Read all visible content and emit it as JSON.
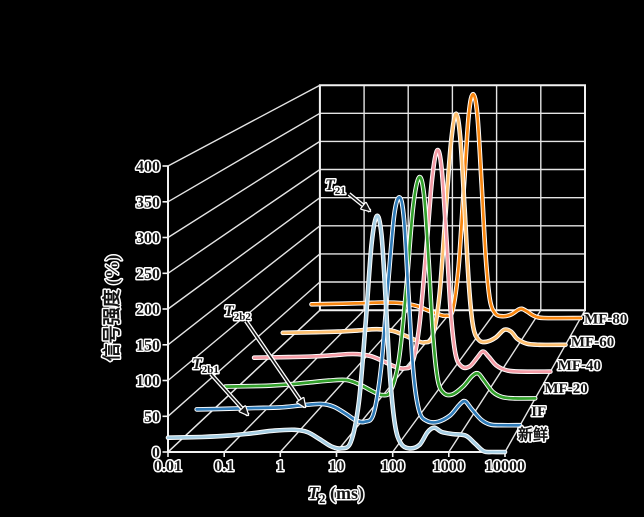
{
  "figure": {
    "background": "#000000",
    "grid_color": "#e4e4e4",
    "axis_color": "#f2f2f2",
    "halo_color": "#ffffff",
    "ink_color": "#141414"
  },
  "chart_data": {
    "type": "line",
    "projection": "3d-waterfall",
    "x_scale": "log",
    "xlim": [
      0.01,
      10000
    ],
    "ylim": [
      0,
      400
    ],
    "xlabel": {
      "main": "T",
      "sub": "2",
      "unit": " (ms)"
    },
    "ylabel": "信号强度 (%)",
    "x_ticks": [
      "0.01",
      "0.1",
      "1",
      "10",
      "100",
      "1000",
      "10000"
    ],
    "y_ticks": [
      0,
      50,
      100,
      150,
      200,
      250,
      300,
      350,
      400
    ],
    "grid": true,
    "legend_position": "right-of-each-baseline",
    "series": [
      {
        "name": "新鲜",
        "color": "#a6cee3",
        "data": [
          [
            0.01,
            20
          ],
          [
            0.04,
            21
          ],
          [
            0.12,
            23
          ],
          [
            0.3,
            26
          ],
          [
            0.8,
            30
          ],
          [
            1.8,
            31
          ],
          [
            3,
            28
          ],
          [
            5,
            18
          ],
          [
            8,
            8
          ],
          [
            12,
            5
          ],
          [
            18,
            14
          ],
          [
            25,
            70
          ],
          [
            33,
            180
          ],
          [
            42,
            290
          ],
          [
            52,
            330
          ],
          [
            63,
            305
          ],
          [
            75,
            215
          ],
          [
            90,
            105
          ],
          [
            110,
            38
          ],
          [
            140,
            12
          ],
          [
            200,
            5
          ],
          [
            300,
            10
          ],
          [
            420,
            28
          ],
          [
            550,
            34
          ],
          [
            750,
            28
          ],
          [
            1200,
            25
          ],
          [
            2000,
            23
          ],
          [
            2900,
            12
          ],
          [
            4200,
            1
          ],
          [
            6000,
            0
          ],
          [
            10000,
            0
          ]
        ]
      },
      {
        "name": "IF",
        "color": "#2f7bb8",
        "data": [
          [
            0.01,
            23
          ],
          [
            0.04,
            24
          ],
          [
            0.12,
            25
          ],
          [
            0.35,
            26
          ],
          [
            0.9,
            29
          ],
          [
            2,
            31
          ],
          [
            3.5,
            27
          ],
          [
            6,
            16
          ],
          [
            9,
            7
          ],
          [
            13,
            5
          ],
          [
            19,
            16
          ],
          [
            26,
            80
          ],
          [
            35,
            200
          ],
          [
            46,
            305
          ],
          [
            58,
            332
          ],
          [
            70,
            300
          ],
          [
            85,
            190
          ],
          [
            105,
            75
          ],
          [
            135,
            20
          ],
          [
            190,
            6
          ],
          [
            300,
            5
          ],
          [
            500,
            14
          ],
          [
            750,
            30
          ],
          [
            950,
            35
          ],
          [
            1250,
            24
          ],
          [
            1900,
            8
          ],
          [
            2800,
            1
          ],
          [
            4500,
            0
          ],
          [
            10000,
            0
          ]
        ]
      },
      {
        "name": "MF-20",
        "color": "#33a02c",
        "data": [
          [
            0.01,
            18
          ],
          [
            0.05,
            19
          ],
          [
            0.15,
            21
          ],
          [
            0.4,
            24
          ],
          [
            1,
            27
          ],
          [
            2.2,
            28
          ],
          [
            4,
            21
          ],
          [
            7,
            11
          ],
          [
            11,
            5
          ],
          [
            16,
            12
          ],
          [
            23,
            60
          ],
          [
            32,
            170
          ],
          [
            43,
            290
          ],
          [
            56,
            336
          ],
          [
            70,
            310
          ],
          [
            86,
            210
          ],
          [
            105,
            95
          ],
          [
            130,
            28
          ],
          [
            170,
            8
          ],
          [
            250,
            6
          ],
          [
            400,
            18
          ],
          [
            600,
            34
          ],
          [
            780,
            38
          ],
          [
            1000,
            28
          ],
          [
            1500,
            10
          ],
          [
            2300,
            2
          ],
          [
            4000,
            0
          ],
          [
            10000,
            0
          ]
        ]
      },
      {
        "name": "MF-40",
        "color": "#f49ca6",
        "data": [
          [
            0.01,
            22
          ],
          [
            0.05,
            23
          ],
          [
            0.15,
            24
          ],
          [
            0.4,
            26
          ],
          [
            1,
            28
          ],
          [
            2.2,
            25
          ],
          [
            4,
            17
          ],
          [
            7,
            8
          ],
          [
            11,
            5
          ],
          [
            16,
            14
          ],
          [
            22,
            70
          ],
          [
            30,
            185
          ],
          [
            40,
            305
          ],
          [
            51,
            352
          ],
          [
            63,
            322
          ],
          [
            78,
            215
          ],
          [
            96,
            95
          ],
          [
            120,
            28
          ],
          [
            160,
            8
          ],
          [
            230,
            8
          ],
          [
            330,
            22
          ],
          [
            430,
            32
          ],
          [
            560,
            24
          ],
          [
            800,
            10
          ],
          [
            1300,
            2
          ],
          [
            2500,
            0
          ],
          [
            10000,
            0
          ]
        ]
      },
      {
        "name": "MF-60",
        "color": "#fdbf6f",
        "data": [
          [
            0.01,
            20
          ],
          [
            0.05,
            21
          ],
          [
            0.15,
            22
          ],
          [
            0.4,
            24
          ],
          [
            1,
            26
          ],
          [
            2.2,
            23
          ],
          [
            4,
            15
          ],
          [
            7,
            7
          ],
          [
            10,
            4
          ],
          [
            15,
            14
          ],
          [
            21,
            80
          ],
          [
            28,
            210
          ],
          [
            37,
            335
          ],
          [
            47,
            385
          ],
          [
            58,
            348
          ],
          [
            72,
            230
          ],
          [
            89,
            100
          ],
          [
            110,
            30
          ],
          [
            145,
            8
          ],
          [
            210,
            5
          ],
          [
            330,
            12
          ],
          [
            500,
            25
          ],
          [
            700,
            22
          ],
          [
            950,
            10
          ],
          [
            1500,
            2
          ],
          [
            2800,
            0
          ],
          [
            10000,
            0
          ]
        ]
      },
      {
        "name": "MF-80",
        "color": "#f8860f",
        "data": [
          [
            0.01,
            24
          ],
          [
            0.05,
            25
          ],
          [
            0.15,
            26
          ],
          [
            0.4,
            27
          ],
          [
            1,
            26
          ],
          [
            2.2,
            21
          ],
          [
            4,
            13
          ],
          [
            7,
            6
          ],
          [
            10,
            4
          ],
          [
            14,
            13
          ],
          [
            19,
            90
          ],
          [
            25,
            230
          ],
          [
            32,
            355
          ],
          [
            40,
            392
          ],
          [
            50,
            355
          ],
          [
            62,
            235
          ],
          [
            77,
            105
          ],
          [
            95,
            32
          ],
          [
            125,
            8
          ],
          [
            180,
            3
          ],
          [
            280,
            6
          ],
          [
            400,
            14
          ],
          [
            490,
            16
          ],
          [
            650,
            11
          ],
          [
            900,
            4
          ],
          [
            1500,
            0
          ],
          [
            10000,
            0
          ]
        ]
      }
    ],
    "annotations": [
      {
        "id": "t21",
        "main": "T",
        "sub": "21"
      },
      {
        "id": "t2b2",
        "main": "T",
        "sub": "2b2"
      },
      {
        "id": "t2b1",
        "main": "T",
        "sub": "2b1"
      }
    ]
  }
}
